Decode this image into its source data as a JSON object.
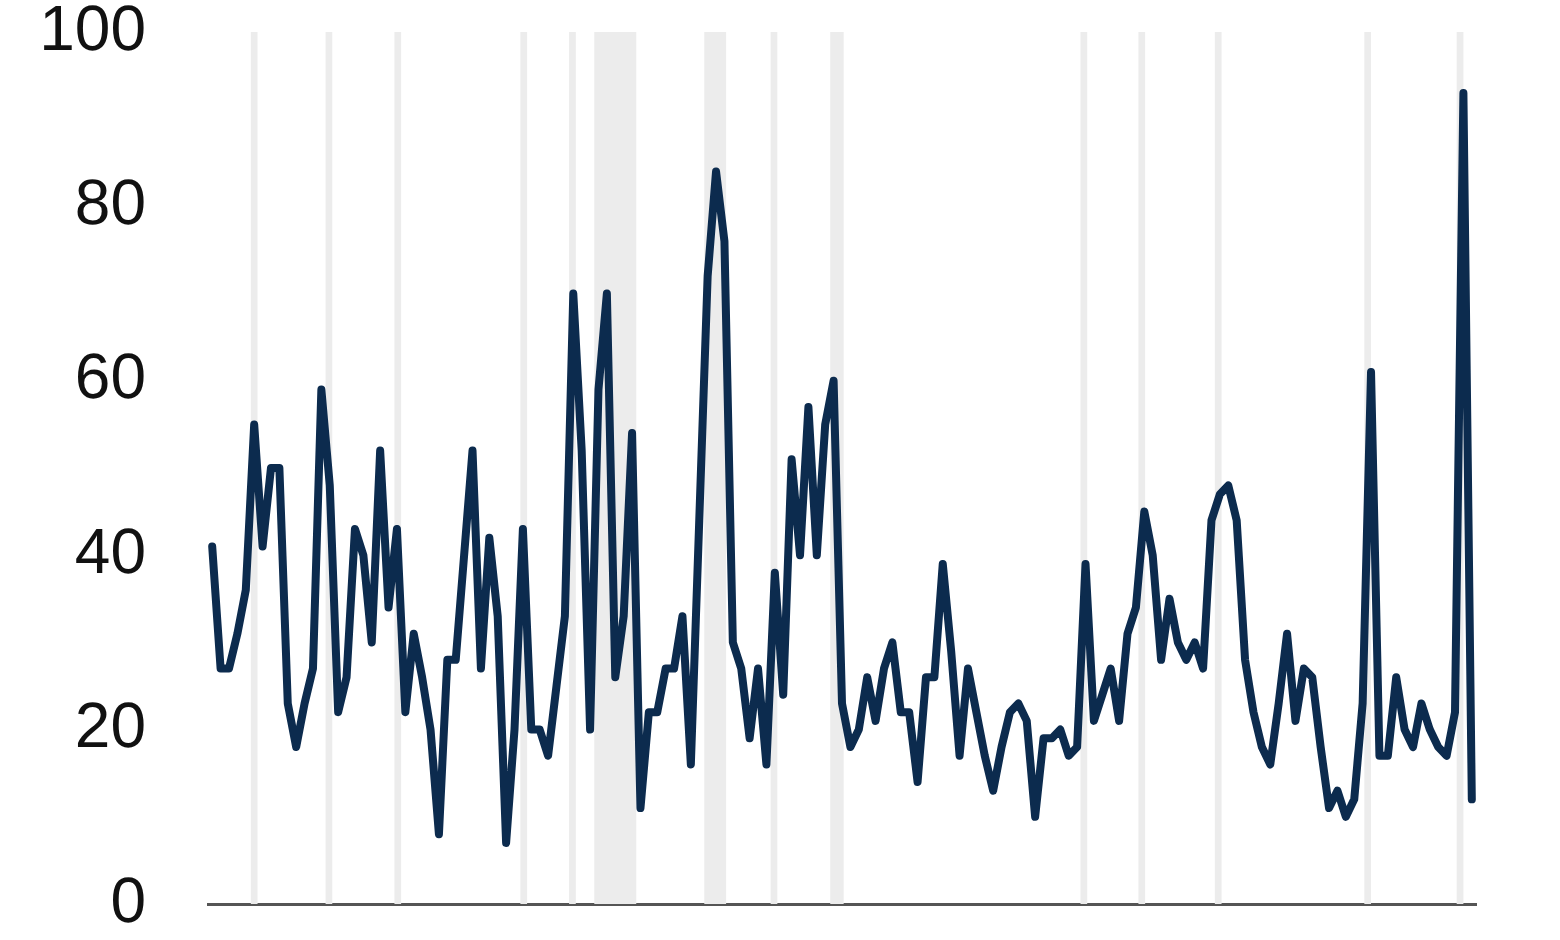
{
  "chart_data": {
    "type": "line",
    "categories": [
      null,
      null,
      null,
      null,
      null,
      null,
      null,
      null,
      null,
      null,
      null,
      null,
      null,
      null,
      null,
      null,
      null,
      null,
      null,
      null,
      null,
      null,
      null,
      null,
      null,
      null,
      null,
      null,
      null,
      null,
      null,
      null,
      null,
      null,
      null,
      null,
      null,
      null,
      null,
      null,
      null,
      null,
      null,
      null,
      null,
      null,
      null,
      null,
      null,
      null,
      null,
      null,
      null,
      null,
      null,
      null,
      null,
      null,
      null,
      null,
      null,
      null,
      null,
      null,
      null,
      null,
      null,
      null,
      null,
      null,
      null,
      null,
      null,
      null,
      null,
      null,
      null,
      null,
      null,
      null,
      null,
      null,
      null,
      null,
      null,
      null,
      null,
      null,
      null,
      null,
      null,
      null,
      null,
      null,
      null,
      null,
      null,
      null,
      null,
      null,
      null,
      null,
      null,
      null,
      null,
      null,
      null,
      null,
      null,
      null,
      null,
      null,
      null,
      null,
      null,
      null,
      null,
      null,
      null,
      null,
      null,
      null,
      null,
      null,
      null,
      null,
      null,
      null,
      null,
      null,
      null,
      null,
      null,
      null,
      null,
      null,
      null,
      null,
      null,
      null,
      null,
      null,
      null,
      null,
      null,
      null,
      null,
      null,
      null,
      null,
      null
    ],
    "series": [
      {
        "color": "#0c2b4e",
        "values": [
          41,
          27,
          27,
          31,
          36,
          55,
          41,
          50,
          50,
          23,
          18,
          23,
          27,
          59,
          48,
          22,
          26,
          43,
          40,
          30,
          52,
          34,
          43,
          22,
          31,
          26,
          20,
          8,
          28,
          28,
          40,
          52,
          27,
          42,
          33,
          7,
          20,
          43,
          20,
          20,
          17,
          25,
          33,
          70,
          52,
          20,
          59,
          70,
          26,
          33,
          54,
          11,
          22,
          22,
          27,
          27,
          33,
          16,
          44,
          72,
          84,
          76,
          30,
          27,
          19,
          27,
          16,
          38,
          24,
          51,
          40,
          57,
          40,
          55,
          60,
          23,
          18,
          20,
          26,
          21,
          27,
          30,
          22,
          22,
          14,
          26,
          26,
          39,
          29,
          17,
          27,
          22,
          17,
          13,
          18,
          22,
          23,
          21,
          10,
          19,
          19,
          20,
          17,
          18,
          39,
          21,
          24,
          27,
          21,
          31,
          34,
          45,
          40,
          28,
          35,
          30,
          28,
          30,
          27,
          44,
          47,
          48,
          44,
          28,
          22,
          18,
          16,
          23,
          31,
          21,
          27,
          26,
          18,
          11,
          13,
          10,
          12,
          23,
          61,
          17,
          17,
          26,
          20,
          18,
          23,
          20,
          18,
          17,
          22,
          93,
          12
        ]
      }
    ],
    "ylim": [
      0,
      100
    ],
    "yticks": [
      0,
      20,
      40,
      60,
      80,
      100
    ],
    "tick_labels": "y"
  }
}
